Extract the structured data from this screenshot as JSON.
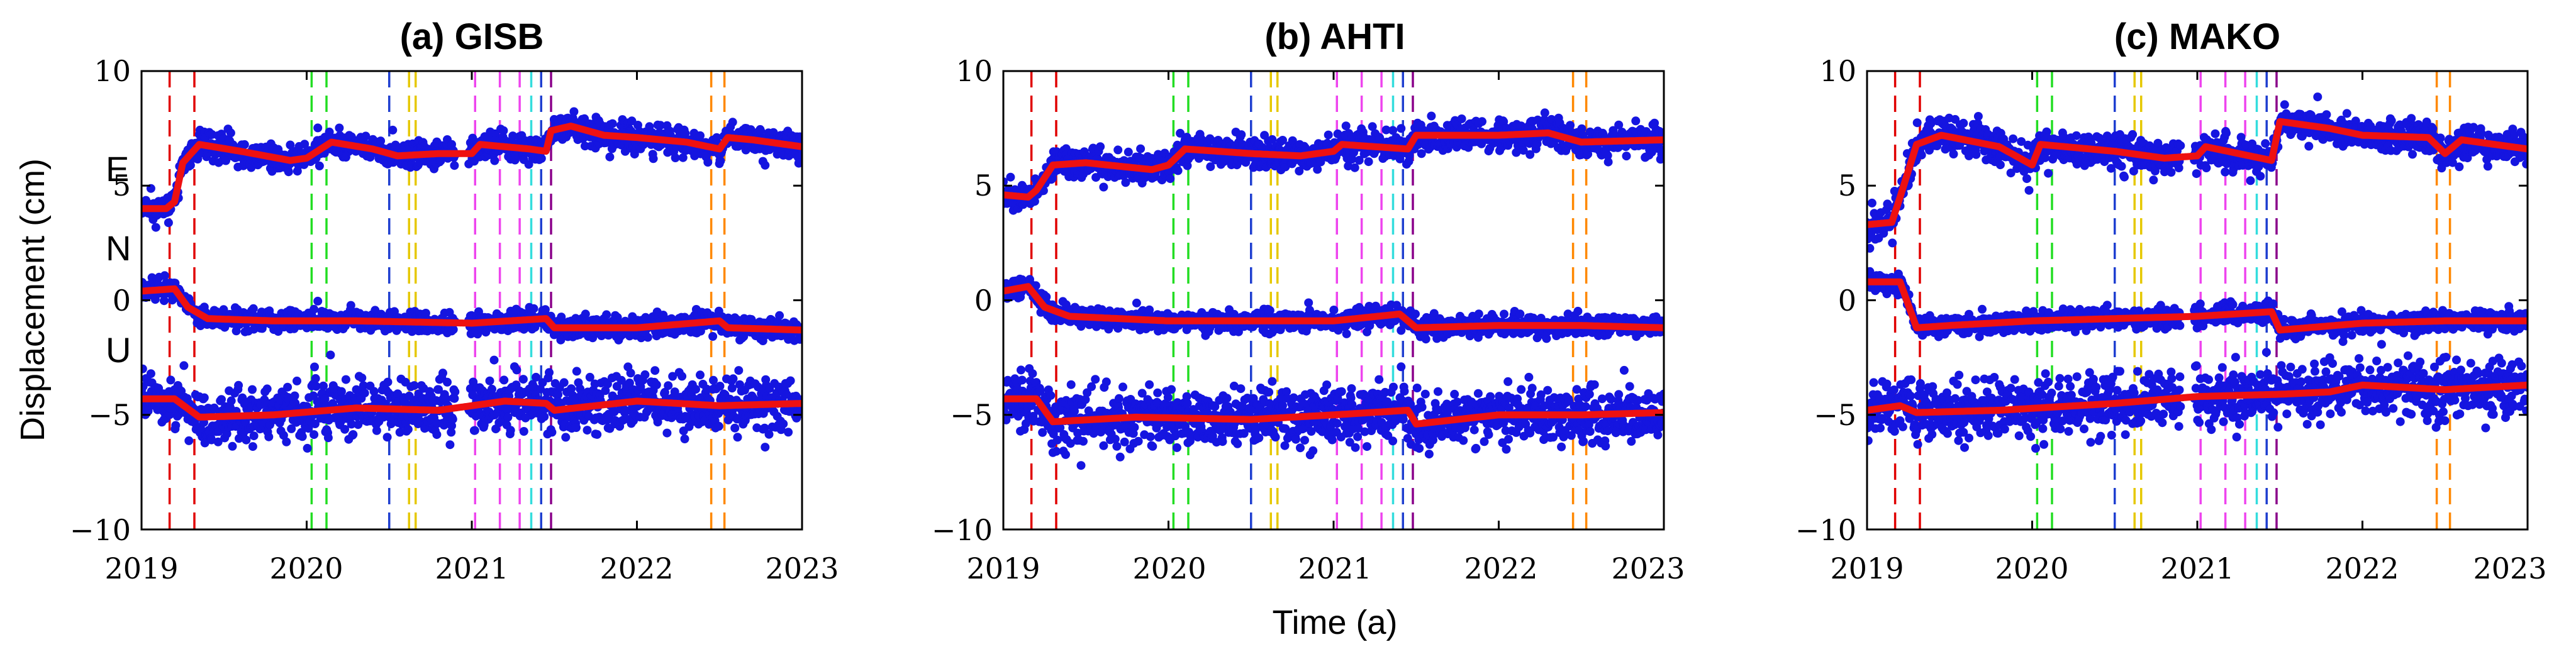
{
  "chart_data": {
    "type": "scatter",
    "ylabel": "Displacement (cm)",
    "xlabel": "Time (a)",
    "xlim": [
      2019,
      2023
    ],
    "ylim": [
      -10,
      10
    ],
    "xticks": [
      2019,
      2020,
      2021,
      2022,
      2023
    ],
    "xtick_labels": [
      "2019",
      "2020",
      "2021",
      "2022",
      "2023"
    ],
    "yticks": [
      10,
      5,
      0,
      -5,
      -10
    ],
    "ytick_labels": [
      "10",
      "5",
      "0",
      "−5",
      "−10"
    ],
    "component_labels": [
      "E",
      "N",
      "U"
    ],
    "event_lines": [
      {
        "x": 2019.17,
        "color": "#e00000"
      },
      {
        "x": 2019.32,
        "color": "#e00000"
      },
      {
        "x": 2020.03,
        "color": "#22dd22"
      },
      {
        "x": 2020.12,
        "color": "#22dd22"
      },
      {
        "x": 2020.5,
        "color": "#1f3fd0"
      },
      {
        "x": 2020.62,
        "color": "#e6c800"
      },
      {
        "x": 2020.66,
        "color": "#e6c800"
      },
      {
        "x": 2021.02,
        "color": "#ee44ee"
      },
      {
        "x": 2021.17,
        "color": "#ee44ee"
      },
      {
        "x": 2021.29,
        "color": "#ee44ee"
      },
      {
        "x": 2021.36,
        "color": "#33dddd"
      },
      {
        "x": 2021.42,
        "color": "#1f3fd0"
      },
      {
        "x": 2021.48,
        "color": "#8a008a"
      },
      {
        "x": 2022.45,
        "color": "#ff8800"
      },
      {
        "x": 2022.53,
        "color": "#ff8800"
      }
    ],
    "marker_color": "#1515e0",
    "model_color": "#ee1111",
    "panels": [
      {
        "title": "(a) GISB",
        "series": [
          {
            "name": "E",
            "model": [
              [
                2019,
                4.0
              ],
              [
                2019.15,
                4.0
              ],
              [
                2019.2,
                4.3
              ],
              [
                2019.25,
                6.0
              ],
              [
                2019.35,
                6.8
              ],
              [
                2019.6,
                6.5
              ],
              [
                2019.9,
                6.1
              ],
              [
                2020.0,
                6.2
              ],
              [
                2020.15,
                6.9
              ],
              [
                2020.4,
                6.6
              ],
              [
                2020.55,
                6.3
              ],
              [
                2020.8,
                6.4
              ],
              [
                2021.0,
                6.4
              ],
              [
                2021.05,
                6.8
              ],
              [
                2021.35,
                6.6
              ],
              [
                2021.45,
                6.5
              ],
              [
                2021.48,
                7.4
              ],
              [
                2021.6,
                7.6
              ],
              [
                2021.8,
                7.2
              ],
              [
                2022.0,
                7.1
              ],
              [
                2022.3,
                6.9
              ],
              [
                2022.5,
                6.6
              ],
              [
                2022.55,
                7.1
              ],
              [
                2022.7,
                7.0
              ],
              [
                2023.0,
                6.7
              ]
            ],
            "noise": 0.3
          },
          {
            "name": "N",
            "model": [
              [
                2019,
                0.4
              ],
              [
                2019.2,
                0.5
              ],
              [
                2019.28,
                -0.3
              ],
              [
                2019.4,
                -0.8
              ],
              [
                2019.8,
                -0.9
              ],
              [
                2020.3,
                -0.9
              ],
              [
                2021.0,
                -1.0
              ],
              [
                2021.45,
                -0.8
              ],
              [
                2021.5,
                -1.2
              ],
              [
                2022.0,
                -1.2
              ],
              [
                2022.5,
                -0.9
              ],
              [
                2022.55,
                -1.2
              ],
              [
                2023.0,
                -1.3
              ]
            ],
            "noise": 0.22
          },
          {
            "name": "U",
            "model": [
              [
                2019,
                -4.3
              ],
              [
                2019.2,
                -4.3
              ],
              [
                2019.35,
                -5.1
              ],
              [
                2019.8,
                -5.0
              ],
              [
                2020.3,
                -4.7
              ],
              [
                2020.8,
                -4.8
              ],
              [
                2021.2,
                -4.4
              ],
              [
                2021.45,
                -4.5
              ],
              [
                2021.5,
                -4.8
              ],
              [
                2022.0,
                -4.4
              ],
              [
                2022.5,
                -4.6
              ],
              [
                2023.0,
                -4.5
              ]
            ],
            "noise": 0.6
          }
        ]
      },
      {
        "title": "(b) AHTI",
        "series": [
          {
            "name": "E",
            "model": [
              [
                2019,
                4.6
              ],
              [
                2019.15,
                4.5
              ],
              [
                2019.2,
                4.8
              ],
              [
                2019.3,
                5.9
              ],
              [
                2019.5,
                6.0
              ],
              [
                2019.9,
                5.7
              ],
              [
                2020.0,
                5.9
              ],
              [
                2020.1,
                6.6
              ],
              [
                2020.5,
                6.4
              ],
              [
                2020.8,
                6.3
              ],
              [
                2021.0,
                6.5
              ],
              [
                2021.05,
                6.8
              ],
              [
                2021.45,
                6.6
              ],
              [
                2021.5,
                7.2
              ],
              [
                2022.0,
                7.2
              ],
              [
                2022.3,
                7.3
              ],
              [
                2022.5,
                6.9
              ],
              [
                2023.0,
                7.0
              ]
            ],
            "noise": 0.32
          },
          {
            "name": "N",
            "model": [
              [
                2019,
                0.4
              ],
              [
                2019.15,
                0.6
              ],
              [
                2019.25,
                -0.3
              ],
              [
                2019.4,
                -0.7
              ],
              [
                2020.0,
                -0.9
              ],
              [
                2021.0,
                -0.9
              ],
              [
                2021.4,
                -0.6
              ],
              [
                2021.5,
                -1.2
              ],
              [
                2022.0,
                -1.1
              ],
              [
                2022.5,
                -1.1
              ],
              [
                2023.0,
                -1.2
              ]
            ],
            "noise": 0.22
          },
          {
            "name": "U",
            "model": [
              [
                2019,
                -4.3
              ],
              [
                2019.2,
                -4.3
              ],
              [
                2019.3,
                -5.3
              ],
              [
                2019.8,
                -5.1
              ],
              [
                2020.5,
                -5.2
              ],
              [
                2021.0,
                -5.0
              ],
              [
                2021.45,
                -4.8
              ],
              [
                2021.5,
                -5.4
              ],
              [
                2022.0,
                -5.0
              ],
              [
                2022.5,
                -5.0
              ],
              [
                2023.0,
                -4.9
              ]
            ],
            "noise": 0.6
          }
        ]
      },
      {
        "title": "(c) MAKO",
        "series": [
          {
            "name": "E",
            "model": [
              [
                2019,
                3.3
              ],
              [
                2019.15,
                3.4
              ],
              [
                2019.2,
                4.5
              ],
              [
                2019.3,
                6.8
              ],
              [
                2019.45,
                7.2
              ],
              [
                2019.8,
                6.7
              ],
              [
                2020.0,
                5.9
              ],
              [
                2020.05,
                6.8
              ],
              [
                2020.5,
                6.5
              ],
              [
                2020.8,
                6.2
              ],
              [
                2021.0,
                6.3
              ],
              [
                2021.05,
                6.7
              ],
              [
                2021.45,
                6.1
              ],
              [
                2021.5,
                7.8
              ],
              [
                2021.8,
                7.5
              ],
              [
                2022.0,
                7.2
              ],
              [
                2022.4,
                7.1
              ],
              [
                2022.5,
                6.4
              ],
              [
                2022.6,
                7.0
              ],
              [
                2023.0,
                6.6
              ]
            ],
            "noise": 0.35
          },
          {
            "name": "N",
            "model": [
              [
                2019,
                0.8
              ],
              [
                2019.2,
                0.8
              ],
              [
                2019.3,
                -1.2
              ],
              [
                2019.5,
                -1.1
              ],
              [
                2020.0,
                -0.9
              ],
              [
                2020.5,
                -0.8
              ],
              [
                2021.0,
                -0.7
              ],
              [
                2021.45,
                -0.5
              ],
              [
                2021.5,
                -1.3
              ],
              [
                2022.0,
                -1.0
              ],
              [
                2022.5,
                -0.9
              ],
              [
                2023.0,
                -0.9
              ]
            ],
            "noise": 0.22
          },
          {
            "name": "U",
            "model": [
              [
                2019,
                -4.8
              ],
              [
                2019.2,
                -4.6
              ],
              [
                2019.3,
                -4.9
              ],
              [
                2019.8,
                -4.8
              ],
              [
                2020.5,
                -4.5
              ],
              [
                2021.0,
                -4.2
              ],
              [
                2021.5,
                -4.1
              ],
              [
                2021.8,
                -4.0
              ],
              [
                2022.0,
                -3.7
              ],
              [
                2022.5,
                -3.9
              ],
              [
                2023.0,
                -3.7
              ]
            ],
            "noise": 0.6
          }
        ]
      }
    ]
  }
}
